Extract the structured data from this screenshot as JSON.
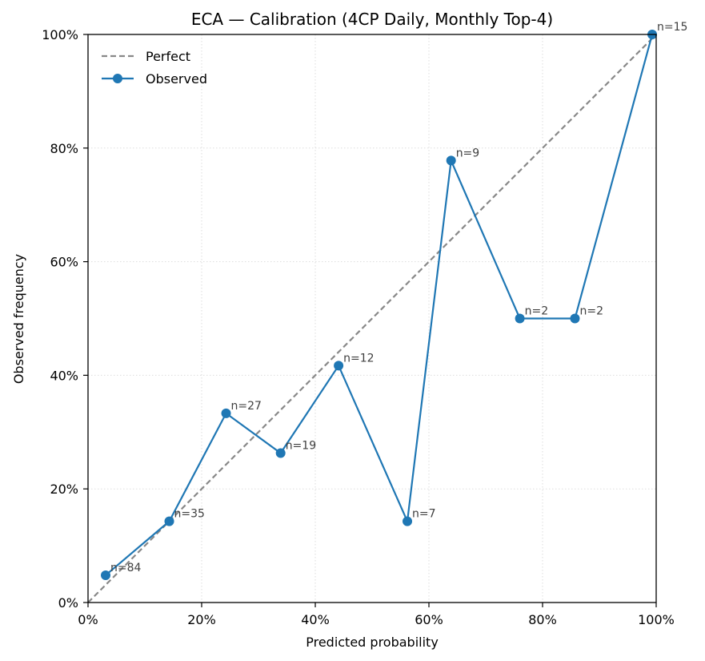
{
  "chart_data": {
    "type": "line",
    "title": "ECA — Calibration (4CP Daily,  Monthly Top-4)",
    "xlabel": "Predicted probability",
    "ylabel": "Observed frequency",
    "xlim": [
      0,
      1
    ],
    "ylim": [
      0,
      1
    ],
    "x_ticks": [
      "0%",
      "20%",
      "40%",
      "60%",
      "80%",
      "100%"
    ],
    "y_ticks": [
      "0%",
      "20%",
      "40%",
      "60%",
      "80%",
      "100%"
    ],
    "grid": true,
    "legend_position": "top-left",
    "series": [
      {
        "name": "Perfect",
        "style": "dashed",
        "color": "#888888",
        "x": [
          0,
          1
        ],
        "y": [
          0,
          1
        ]
      },
      {
        "name": "Observed",
        "style": "solid-with-markers",
        "color": "#1f77b4",
        "x": [
          0.031,
          0.143,
          0.243,
          0.339,
          0.441,
          0.562,
          0.639,
          0.76,
          0.857,
          0.993
        ],
        "y": [
          0.048,
          0.143,
          0.333,
          0.263,
          0.417,
          0.143,
          0.778,
          0.5,
          0.5,
          1.0
        ],
        "labels": [
          "n=84",
          "n=35",
          "n=27",
          "n=19",
          "n=12",
          "n=7",
          "n=9",
          "n=2",
          "n=2",
          "n=15"
        ]
      }
    ]
  }
}
